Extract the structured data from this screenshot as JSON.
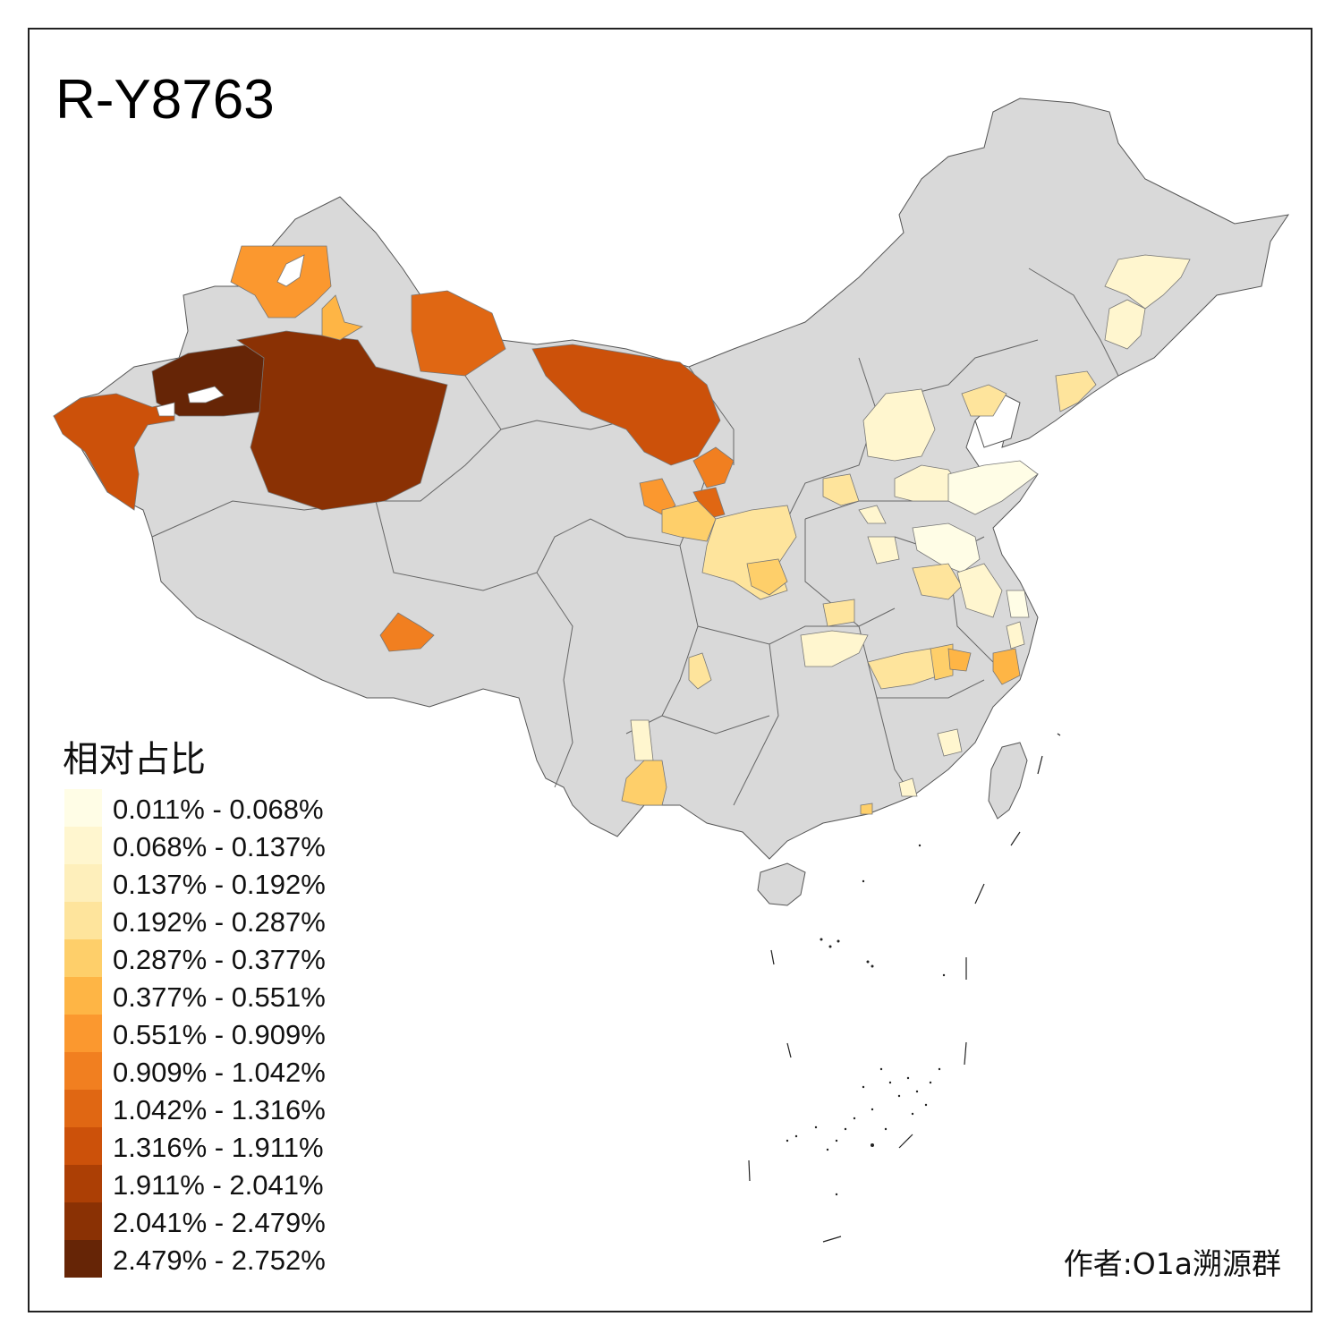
{
  "map": {
    "title": "R-Y8763",
    "base_color": "#d9d9d9",
    "border_color": "#555555"
  },
  "legend": {
    "title": "相对占比",
    "classes": [
      {
        "label": "0.011% - 0.068%",
        "color": "#fffde6"
      },
      {
        "label": "0.068% - 0.137%",
        "color": "#fff6cf"
      },
      {
        "label": "0.137% - 0.192%",
        "color": "#feefbb"
      },
      {
        "label": "0.192% - 0.287%",
        "color": "#fee49c"
      },
      {
        "label": "0.287% - 0.377%",
        "color": "#fecf6a"
      },
      {
        "label": "0.377% - 0.551%",
        "color": "#feb545"
      },
      {
        "label": "0.551% - 0.909%",
        "color": "#fb982f"
      },
      {
        "label": "0.909% - 1.042%",
        "color": "#f17f20"
      },
      {
        "label": "1.042% - 1.316%",
        "color": "#e06713"
      },
      {
        "label": "1.316% - 1.911%",
        "color": "#cc510a"
      },
      {
        "label": "1.911% - 2.041%",
        "color": "#ac3f05"
      },
      {
        "label": "2.041% - 2.479%",
        "color": "#8a3104"
      },
      {
        "label": "2.479% - 2.752%",
        "color": "#662506"
      }
    ]
  },
  "author": "作者:O1a溯源群"
}
